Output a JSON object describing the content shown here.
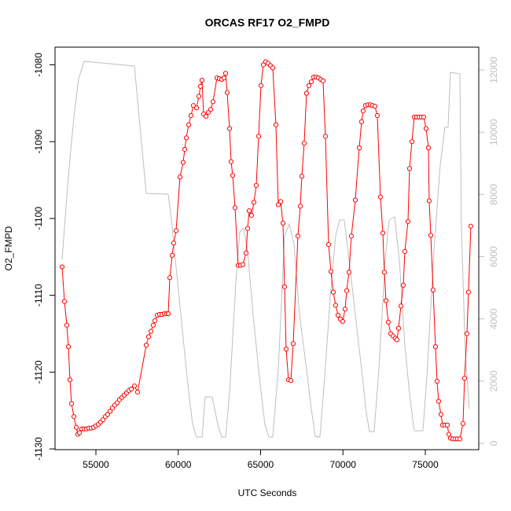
{
  "chart_data": {
    "type": "line",
    "title": "ORCAS RF17 O2_FMPD",
    "x_label": "UTC Seconds",
    "y_label": "O2_FMPD",
    "xlim": [
      52518,
      78246
    ],
    "xticks": [
      55000,
      60000,
      65000,
      70000,
      75000
    ],
    "ylim": [
      -1130.1,
      -1077.7
    ],
    "yticks": [
      -1130,
      -1120,
      -1110,
      -1100,
      -1090,
      -1080
    ],
    "y2lim": [
      -202,
      12733
    ],
    "y2ticks": [
      0,
      2000,
      4000,
      6000,
      8000,
      10000,
      12000
    ],
    "y2_color": "#bebebe",
    "series": [
      {
        "color": "#bebebe",
        "axis": "y2",
        "x": [
          52948,
          53234,
          53473,
          53711,
          53950,
          54284,
          57339,
          58055,
          59391,
          59582,
          59821,
          60155,
          60537,
          60871,
          61109,
          61443,
          61634,
          62064,
          62398,
          62637,
          62875,
          63114,
          63496,
          63734,
          63973,
          64211,
          64545,
          64927,
          65261,
          65500,
          65738,
          66073,
          66454,
          66741,
          67027,
          67361,
          67790,
          68077,
          68316,
          68602,
          68888,
          69223,
          69557,
          69796,
          70082,
          70368,
          70750,
          71132,
          71418,
          71609,
          71895,
          72182,
          72563,
          72802,
          73136,
          73423,
          73757,
          74091,
          74330,
          74855,
          75093,
          75523,
          75905,
          76191,
          76382,
          76525,
          77098,
          77193,
          77432,
          77670
        ],
        "values": [
          5912,
          7933,
          9449,
          10712,
          11723,
          12279,
          12127,
          8034,
          8009,
          7226,
          5912,
          4143,
          2122,
          606,
          202,
          202,
          1491,
          1491,
          606,
          202,
          202,
          1617,
          5154,
          6796,
          6923,
          6165,
          4143,
          2122,
          606,
          202,
          202,
          2375,
          6670,
          7049,
          6417,
          4143,
          2375,
          1112,
          227,
          202,
          2122,
          4649,
          6670,
          7175,
          7175,
          5912,
          4143,
          2375,
          985,
          379,
          379,
          2375,
          5912,
          7175,
          7276,
          5912,
          3133,
          1364,
          404,
          404,
          2122,
          6165,
          8944,
          10157,
          10157,
          11925,
          11874,
          6923,
          2880,
          1112
        ]
      },
      {
        "color": "#ff0000",
        "marker": "open-circle",
        "x": [
          52948,
          53091,
          53234,
          53329,
          53425,
          53520,
          53664,
          53807,
          53902,
          53998,
          54141,
          54284,
          54427,
          54570,
          54714,
          54857,
          55000,
          55143,
          55286,
          55429,
          55573,
          55716,
          55859,
          56002,
          56145,
          56289,
          56432,
          56575,
          56718,
          56861,
          57004,
          57148,
          57339,
          57530,
          58055,
          58198,
          58341,
          58484,
          58580,
          58723,
          58866,
          59009,
          59152,
          59296,
          59391,
          59487,
          59630,
          59725,
          59868,
          60107,
          60298,
          60393,
          60489,
          60632,
          60775,
          60918,
          61109,
          61252,
          61348,
          61443,
          61539,
          61682,
          61825,
          61968,
          62111,
          62350,
          62493,
          62637,
          62780,
          62875,
          62971,
          63114,
          63209,
          63305,
          63448,
          63639,
          63782,
          63925,
          64116,
          64211,
          64307,
          64450,
          64593,
          64736,
          64880,
          65023,
          65166,
          65309,
          65452,
          65595,
          65738,
          65929,
          66073,
          66216,
          66359,
          66454,
          66550,
          66693,
          66836,
          66979,
          67265,
          67409,
          67504,
          67647,
          67790,
          67933,
          68077,
          68220,
          68363,
          68506,
          68649,
          68793,
          68936,
          69127,
          69270,
          69413,
          69557,
          69700,
          69843,
          69986,
          70129,
          70225,
          70368,
          70511,
          70750,
          70989,
          71132,
          71227,
          71371,
          71514,
          71657,
          71800,
          71943,
          72086,
          72277,
          72421,
          72516,
          72612,
          72755,
          72898,
          73041,
          73184,
          73280,
          73375,
          73519,
          73662,
          73757,
          73948,
          74044,
          74187,
          74330,
          74473,
          74616,
          74759,
          74902,
          75046,
          75189,
          75236,
          75332,
          75475,
          75618,
          75714,
          75809,
          75952,
          76048,
          76191,
          76334,
          76430,
          76525,
          76668,
          76811,
          76955,
          77098,
          77289,
          77384,
          77527,
          77623,
          77766
        ],
        "values": [
          -1106.3,
          -1110.8,
          -1113.9,
          -1116.7,
          -1121.0,
          -1124.1,
          -1125.8,
          -1127.2,
          -1128.1,
          -1127.9,
          -1127.4,
          -1127.4,
          -1127.4,
          -1127.3,
          -1127.3,
          -1127.2,
          -1127.0,
          -1126.8,
          -1126.5,
          -1126.2,
          -1125.8,
          -1125.5,
          -1125.1,
          -1124.7,
          -1124.3,
          -1124.0,
          -1123.6,
          -1123.3,
          -1123.0,
          -1122.7,
          -1122.4,
          -1122.2,
          -1121.8,
          -1122.6,
          -1116.5,
          -1115.4,
          -1114.7,
          -1113.9,
          -1113.3,
          -1112.6,
          -1112.5,
          -1112.5,
          -1112.4,
          -1112.4,
          -1112.4,
          -1107.7,
          -1104.8,
          -1103.2,
          -1101.6,
          -1094.6,
          -1092.7,
          -1091.0,
          -1089.5,
          -1087.8,
          -1086.6,
          -1085.3,
          -1085.6,
          -1084.1,
          -1082.8,
          -1082.0,
          -1086.4,
          -1086.7,
          -1086.2,
          -1085.8,
          -1084.8,
          -1081.7,
          -1081.8,
          -1081.9,
          -1081.7,
          -1081.1,
          -1083.6,
          -1088.3,
          -1092.6,
          -1094.4,
          -1098.6,
          -1106.1,
          -1106.1,
          -1106.0,
          -1104.5,
          -1101.3,
          -1099.0,
          -1099.6,
          -1097.9,
          -1095.7,
          -1089.3,
          -1082.7,
          -1080.0,
          -1079.6,
          -1079.8,
          -1080.1,
          -1080.4,
          -1087.8,
          -1098.2,
          -1097.8,
          -1100.6,
          -1108.9,
          -1117.0,
          -1121.0,
          -1121.1,
          -1116.3,
          -1102.3,
          -1098.4,
          -1094.5,
          -1090.2,
          -1083.7,
          -1082.7,
          -1082.2,
          -1081.6,
          -1081.6,
          -1081.7,
          -1081.9,
          -1082.1,
          -1089.3,
          -1103.4,
          -1106.9,
          -1109.6,
          -1111.3,
          -1112.6,
          -1113.1,
          -1113.4,
          -1111.8,
          -1109.4,
          -1107.0,
          -1102.3,
          -1097.6,
          -1090.8,
          -1087.4,
          -1086.0,
          -1085.3,
          -1085.2,
          -1085.2,
          -1085.3,
          -1085.4,
          -1086.6,
          -1097.2,
          -1101.9,
          -1107.0,
          -1110.7,
          -1113.5,
          -1115.0,
          -1115.3,
          -1115.6,
          -1115.8,
          -1114.3,
          -1111.4,
          -1108.7,
          -1104.3,
          -1100.4,
          -1093.5,
          -1090.0,
          -1086.8,
          -1086.8,
          -1086.8,
          -1086.8,
          -1086.8,
          -1088.3,
          -1090.8,
          -1097.7,
          -1102.2,
          -1109.3,
          -1116.7,
          -1121.2,
          -1123.8,
          -1125.5,
          -1126.9,
          -1126.9,
          -1126.9,
          -1128.1,
          -1128.6,
          -1128.7,
          -1128.7,
          -1128.7,
          -1128.7,
          -1126.7,
          -1120.8,
          -1115.0,
          -1109.6,
          -1101.0
        ]
      }
    ]
  }
}
